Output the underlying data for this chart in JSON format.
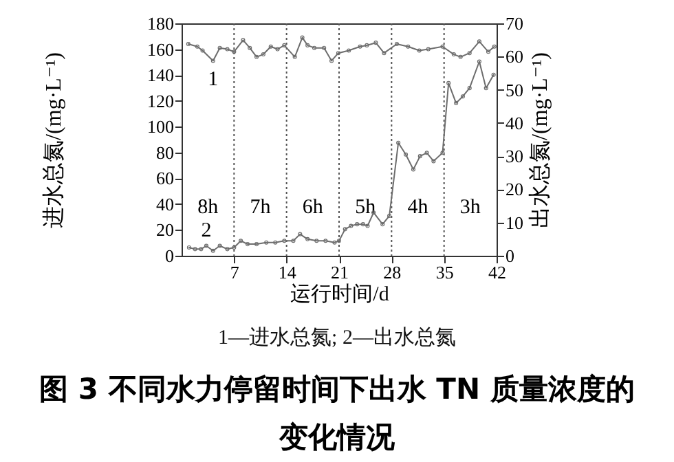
{
  "chart_data": {
    "type": "line",
    "title": "图 3 不同水力停留时间下出水 TN 质量浓度的变化情况",
    "xlabel": "运行时间/d",
    "ylabel": "进水总氮/(mg·L⁻¹)",
    "y2label": "出水总氮/(mg·L⁻¹)",
    "xlim": [
      0,
      42
    ],
    "xticks": [
      7,
      14,
      21,
      28,
      35,
      42
    ],
    "ylim": [
      0,
      180
    ],
    "yticks": [
      0,
      20,
      40,
      60,
      80,
      100,
      120,
      140,
      160,
      180
    ],
    "y2lim": [
      0,
      70
    ],
    "y2ticks": [
      0,
      10,
      20,
      30,
      40,
      50,
      60,
      70
    ],
    "marker": "circle",
    "series": [
      {
        "name": "1",
        "color": "#6d6d6d",
        "x": [
          0.9,
          2.1,
          2.8,
          4.2,
          5.1,
          6.1,
          7.0,
          8.2,
          9.1,
          10.0,
          10.9,
          11.9,
          12.8,
          13.7,
          15.1,
          16.1,
          16.8,
          17.7,
          19.0,
          20.0,
          20.9,
          22.3,
          23.8,
          24.7,
          25.9,
          27.0,
          28.7,
          30.2,
          31.7,
          32.9,
          34.8,
          36.3,
          37.2,
          38.4,
          39.7,
          40.9,
          41.7
        ],
        "values": [
          164,
          162,
          159,
          151,
          161,
          160,
          158,
          167,
          161,
          154,
          156,
          162,
          160,
          163,
          154,
          169,
          163,
          161,
          161,
          151,
          157,
          159,
          162,
          163,
          165,
          157,
          164,
          162,
          159,
          160,
          162,
          156,
          154,
          157,
          166,
          158,
          162
        ]
      },
      {
        "name": "2",
        "color": "#6d6d6d",
        "axis": "y2",
        "x": [
          1.0,
          1.8,
          2.6,
          3.3,
          4.2,
          5.1,
          6.1,
          7.0,
          7.9,
          8.8,
          10.0,
          11.3,
          12.5,
          13.7,
          14.9,
          15.8,
          16.8,
          18.0,
          19.2,
          20.4,
          21.0,
          21.8,
          22.6,
          23.4,
          24.2,
          24.8,
          25.6,
          26.8,
          27.7,
          28.9,
          29.9,
          30.9,
          31.8,
          32.7,
          33.6,
          34.8,
          35.6,
          36.6,
          37.5,
          38.4,
          39.7,
          40.6,
          41.6
        ],
        "values": [
          2.5,
          2,
          2,
          3,
          1.5,
          3,
          2,
          2.5,
          4.5,
          3.5,
          3.5,
          4,
          4,
          4.5,
          4.5,
          6.5,
          5,
          4.5,
          4.5,
          4,
          4.5,
          8,
          9,
          9.5,
          9.5,
          9,
          13,
          9.5,
          12,
          34,
          30.5,
          26,
          30,
          31,
          28.5,
          31,
          52,
          46,
          48,
          50.5,
          58.5,
          50.5,
          54.5
        ]
      }
    ],
    "ref_lines": [
      {
        "axis": "x",
        "value": 7,
        "line_style": "dotted",
        "color": "#555555"
      },
      {
        "axis": "x",
        "value": 14,
        "line_style": "dotted",
        "color": "#555555"
      },
      {
        "axis": "x",
        "value": 21,
        "line_style": "dotted",
        "color": "#555555"
      },
      {
        "axis": "x",
        "value": 28,
        "line_style": "dotted",
        "color": "#555555"
      },
      {
        "axis": "x",
        "value": 35,
        "line_style": "dotted",
        "color": "#555555"
      }
    ],
    "annotations": [
      "8h",
      "7h",
      "6h",
      "5h",
      "4h",
      "3h",
      "1—进水总氮; 2—出水总氮"
    ]
  }
}
